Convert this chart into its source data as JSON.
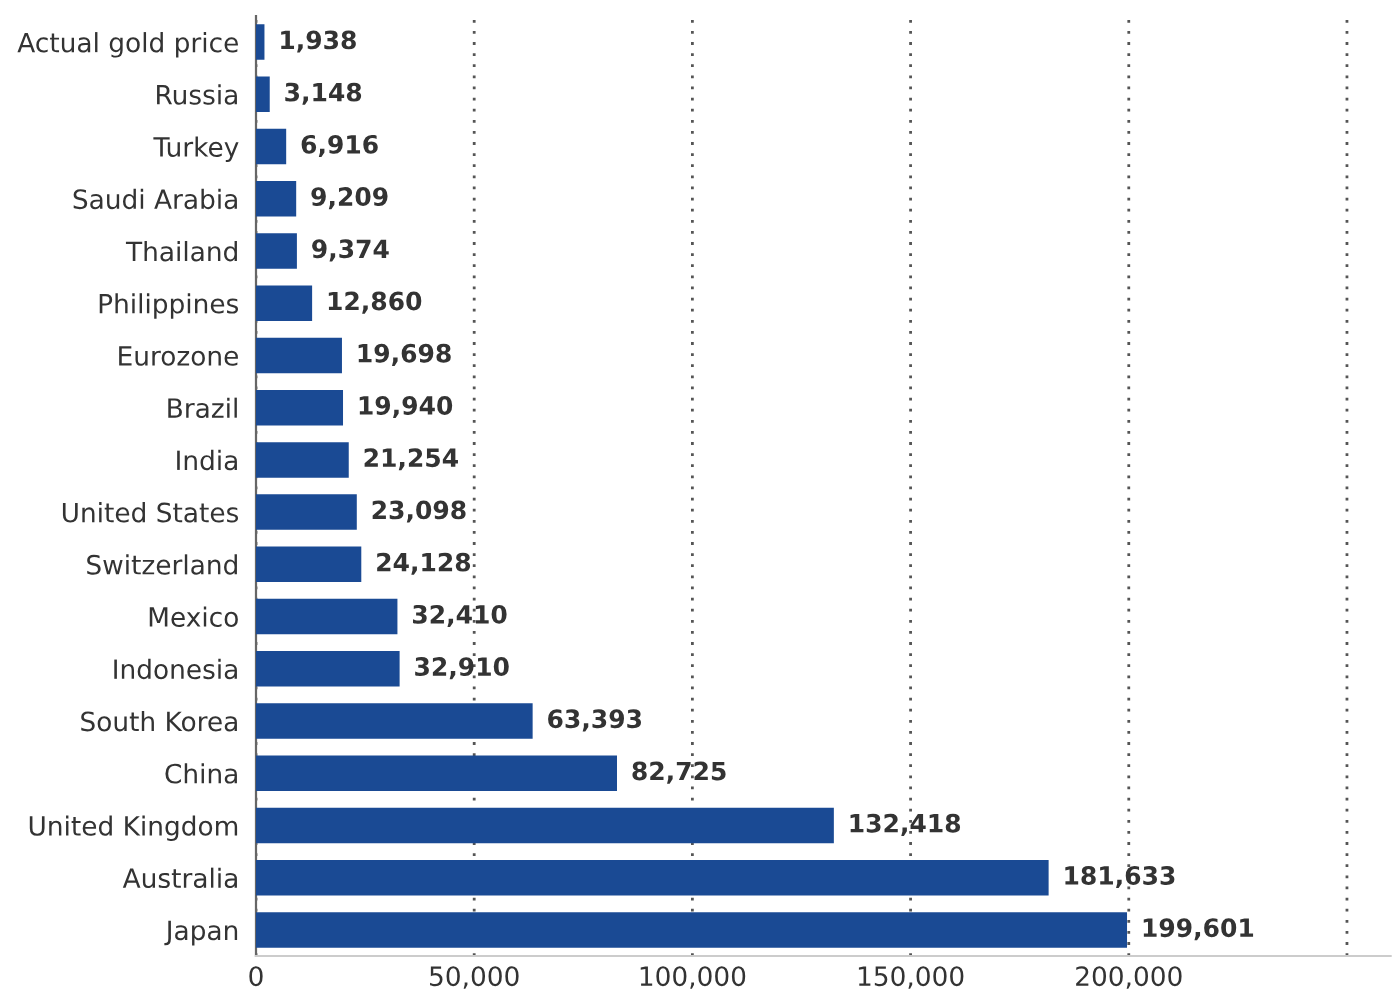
{
  "chart_data": {
    "type": "bar",
    "orientation": "horizontal",
    "categories": [
      "Actual gold price",
      "Russia",
      "Turkey",
      "Saudi Arabia",
      "Thailand",
      "Philippines",
      "Eurozone",
      "Brazil",
      "India",
      "United States",
      "Switzerland",
      "Mexico",
      "Indonesia",
      "South Korea",
      "China",
      "United Kingdom",
      "Australia",
      "Japan"
    ],
    "values": [
      1938,
      3148,
      6916,
      9209,
      9374,
      12860,
      19698,
      19940,
      21254,
      23098,
      24128,
      32410,
      32910,
      63393,
      82725,
      132418,
      181633,
      199601
    ],
    "value_labels": [
      "1,938",
      "3,148",
      "6,916",
      "9,209",
      "9,374",
      "12,860",
      "19,698",
      "19,940",
      "21,254",
      "23,098",
      "24,128",
      "32,410",
      "32,910",
      "63,393",
      "82,725",
      "132,418",
      "181,633",
      "199,601"
    ],
    "color": "#1a4a94",
    "xlim": [
      0,
      260000
    ],
    "xticks": [
      {
        "value": 0,
        "label": "0"
      },
      {
        "value": 50000,
        "label": "50,000"
      },
      {
        "value": 100000,
        "label": "100,000"
      },
      {
        "value": 150000,
        "label": "150,000"
      },
      {
        "value": 200000,
        "label": "200,000"
      },
      {
        "value": 250000,
        "label": null
      }
    ],
    "grid": "x"
  }
}
